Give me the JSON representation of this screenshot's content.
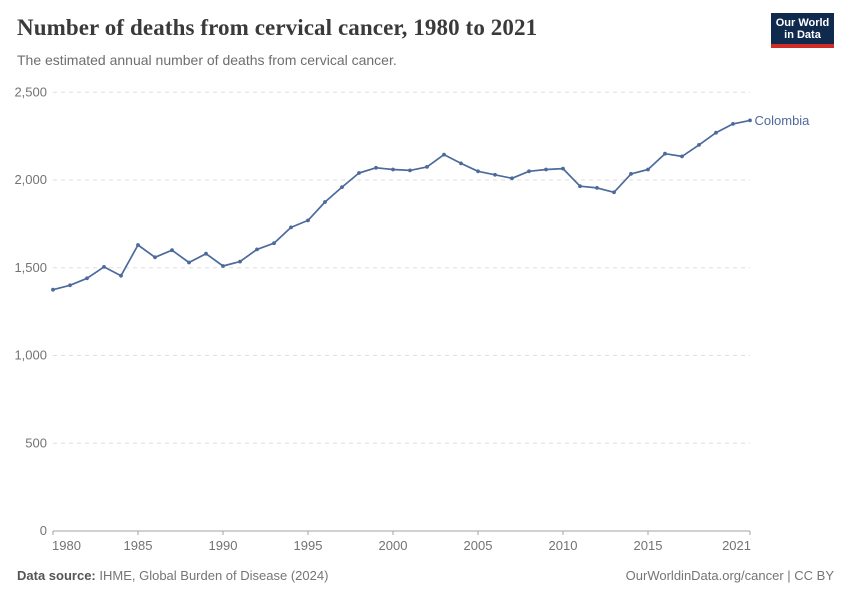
{
  "header": {
    "title": "Number of deaths from cervical cancer, 1980 to 2021",
    "subtitle": "The estimated annual number of deaths from cervical cancer.",
    "logo": {
      "line1": "Our World",
      "line2": "in Data",
      "bg_color": "#102A4E",
      "stripe_color": "#CE2C29"
    }
  },
  "chart_data": {
    "type": "line",
    "title": "Number of deaths from cervical cancer, 1980 to 2021",
    "subtitle": "The estimated annual number of deaths from cervical cancer.",
    "grid": "horizontal dashed",
    "legend_position": "end-of-line label",
    "xlim": [
      1980,
      2021
    ],
    "ylim": [
      0,
      2500
    ],
    "x_ticks": [
      1980,
      1985,
      1990,
      1995,
      2000,
      2005,
      2010,
      2015,
      2021
    ],
    "y_ticks": [
      0,
      500,
      1000,
      1500,
      2000,
      2500
    ],
    "y_tick_labels": [
      "0",
      "500",
      "1,000",
      "1,500",
      "2,000",
      "2,500"
    ],
    "xlabel": "",
    "ylabel": "",
    "years": [
      1980,
      1981,
      1982,
      1983,
      1984,
      1985,
      1986,
      1987,
      1988,
      1989,
      1990,
      1991,
      1992,
      1993,
      1994,
      1995,
      1996,
      1997,
      1998,
      1999,
      2000,
      2001,
      2002,
      2003,
      2004,
      2005,
      2006,
      2007,
      2008,
      2009,
      2010,
      2011,
      2012,
      2013,
      2014,
      2015,
      2016,
      2017,
      2018,
      2019,
      2020,
      2021
    ],
    "series": [
      {
        "name": "Colombia",
        "color": "#4C6A9C",
        "values": [
          1375,
          1400,
          1440,
          1505,
          1455,
          1630,
          1560,
          1600,
          1530,
          1580,
          1510,
          1535,
          1605,
          1640,
          1730,
          1770,
          1875,
          1960,
          2040,
          2070,
          2060,
          2055,
          2075,
          2145,
          2095,
          2050,
          2030,
          2010,
          2050,
          2060,
          2065,
          1965,
          1955,
          1930,
          2035,
          2060,
          2150,
          2135,
          2200,
          2270,
          2320,
          2340
        ]
      }
    ]
  },
  "footer": {
    "datasource_label": "Data source:",
    "datasource_value": " IHME, Global Burden of Disease (2024)",
    "right_text": "OurWorldinData.org/cancer | CC BY"
  },
  "colors": {
    "line": "#4C6A9C",
    "gridline": "#dedede",
    "axis": "#a3a3a3",
    "tick_text": "#737373",
    "title_text": "#3a3a3a",
    "subtitle_text": "#6e6e6e"
  }
}
